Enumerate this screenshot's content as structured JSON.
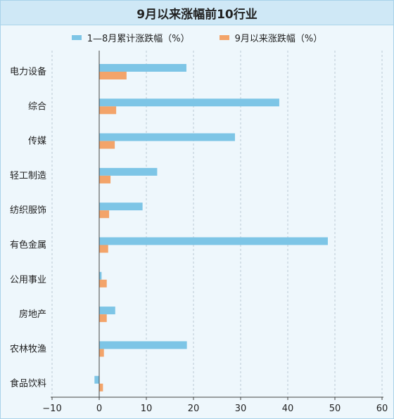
{
  "chart_data": {
    "type": "bar",
    "orientation": "horizontal",
    "title": "9月以来涨幅前10行业",
    "categories": [
      "电力设备",
      "综合",
      "传媒",
      "轻工制造",
      "纺织服饰",
      "有色金属",
      "公用事业",
      "房地产",
      "农林牧渔",
      "食品饮料"
    ],
    "series": [
      {
        "name": "1—8月累计涨跌幅（%）",
        "color": "#7dc5e6",
        "values": [
          18.5,
          38.2,
          28.8,
          12.3,
          9.2,
          48.5,
          0.5,
          3.4,
          18.6,
          -1.0
        ]
      },
      {
        "name": "9月以来涨跌幅（%）",
        "color": "#f3a46a",
        "values": [
          5.8,
          3.6,
          3.3,
          2.4,
          2.1,
          1.9,
          1.6,
          1.6,
          1.0,
          0.8
        ]
      }
    ],
    "xlim": [
      -10,
      60
    ],
    "xticks": [
      "−10",
      "0",
      "10",
      "20",
      "30",
      "40",
      "50",
      "60"
    ],
    "xtick_values": [
      -10,
      0,
      10,
      20,
      30,
      40,
      50,
      60
    ],
    "grid": "vertical dashed",
    "legend_position": "top"
  }
}
